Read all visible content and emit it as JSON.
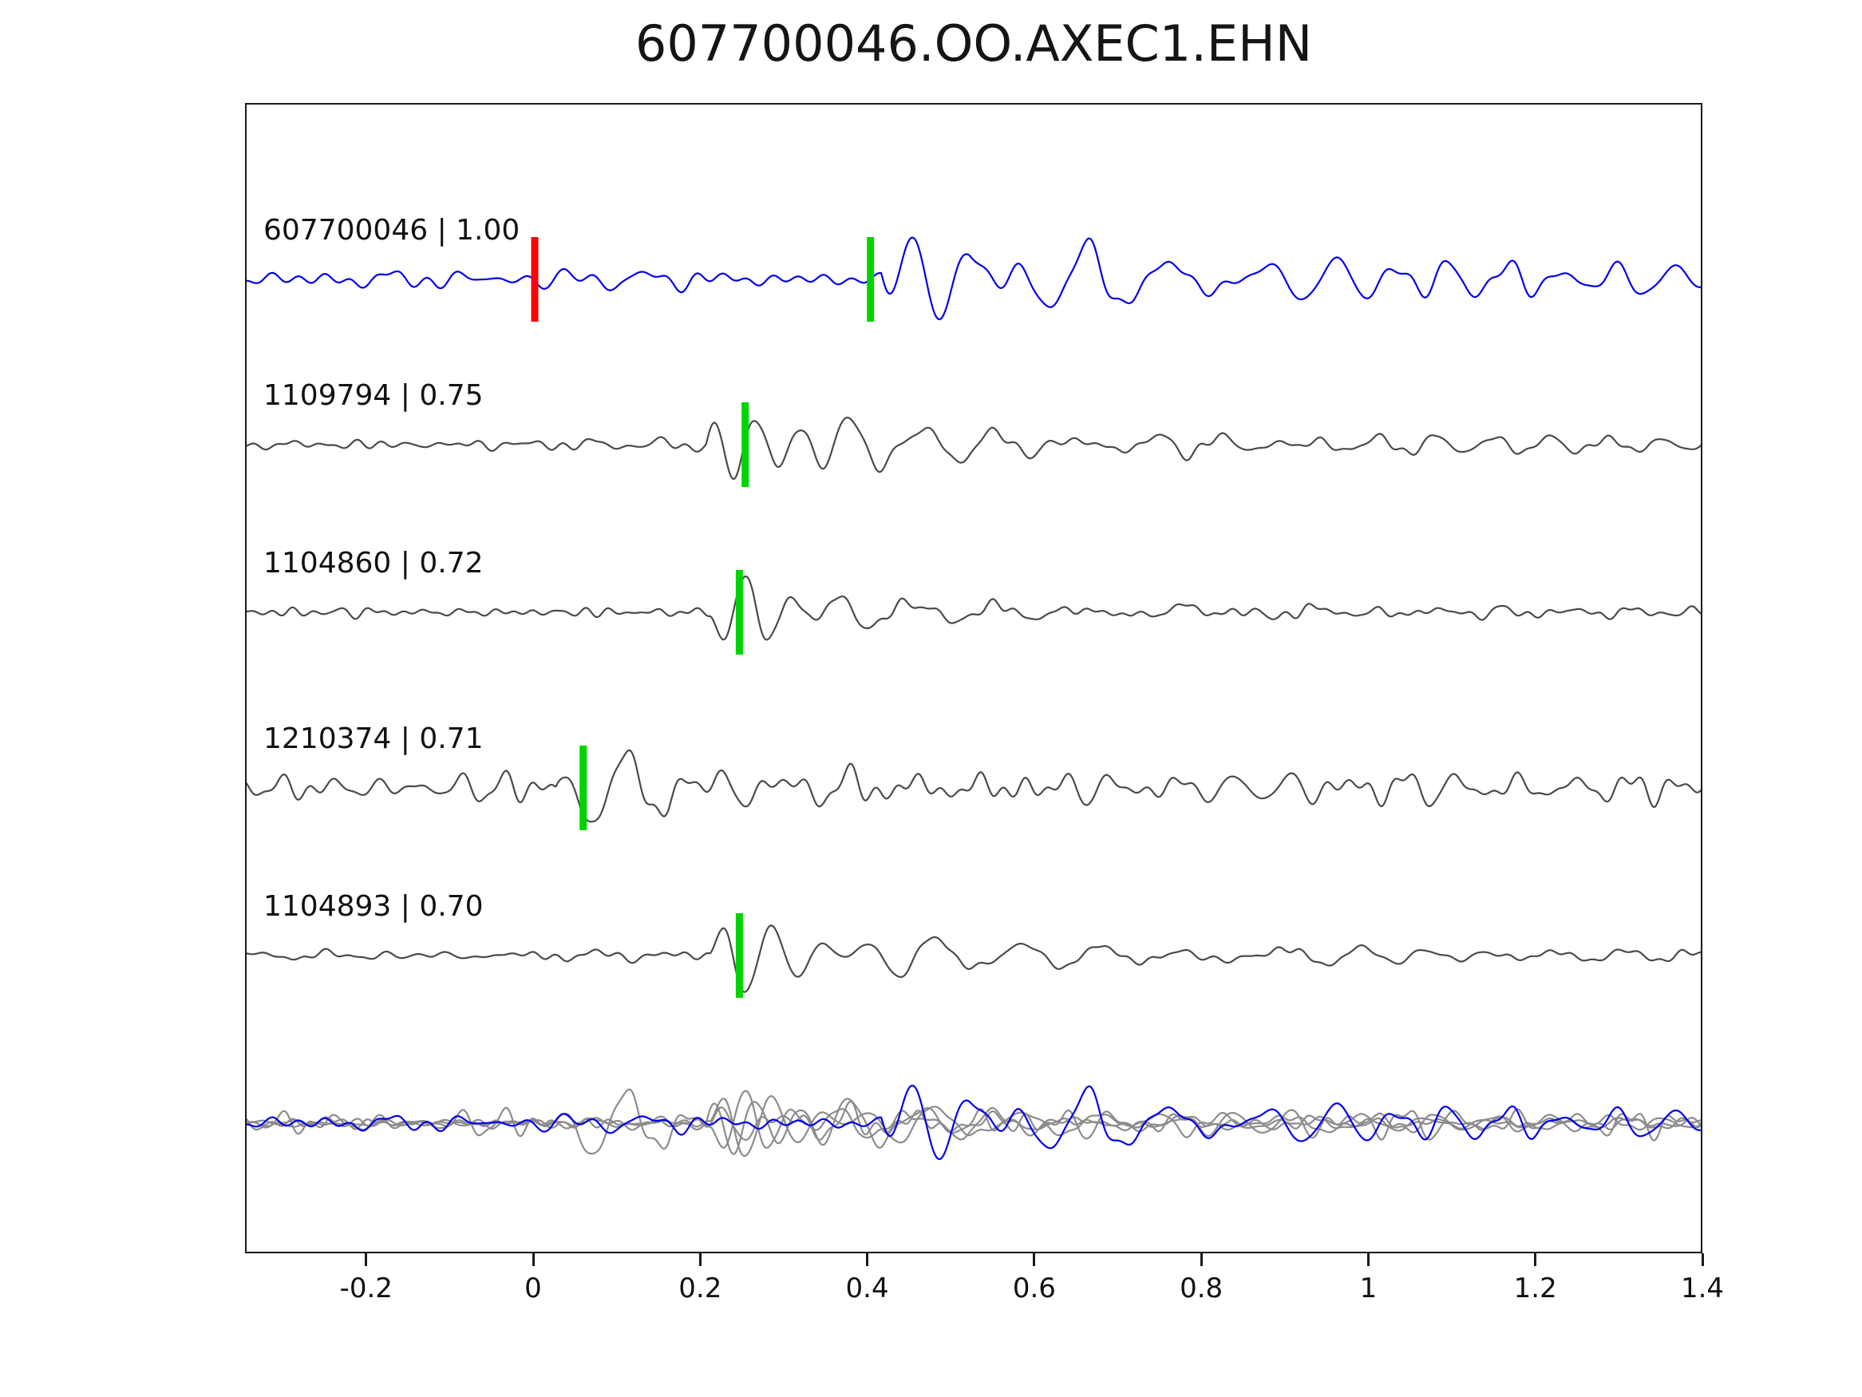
{
  "chart_data": {
    "type": "line",
    "title": "607700046.OO.AXEC1.EHN",
    "xlabel": "",
    "ylabel": "",
    "grid": false,
    "legend": "none",
    "x_range": [
      -0.345,
      1.4
    ],
    "x_ticks": [
      -0.2,
      0,
      0.2,
      0.4,
      0.6,
      0.8,
      1,
      1.2,
      1.4
    ],
    "x_tick_labels": [
      "-0.2",
      "0",
      "0.2",
      "0.4",
      "0.6",
      "0.8",
      "1",
      "1.2",
      "1.4"
    ],
    "description": "Waveform similarity plot: reference event 607700046 (blue) compared with four matched events (gray). Green bars mark pick times on each trace, red bar marks time zero on the reference trace. Bottom row overlays all five traces.",
    "colors": {
      "reference_trace": "#0000ee",
      "match_trace": "#4a4a4a",
      "pick_green": "#00d400",
      "pick_red": "#ff0000",
      "overlay_gray": "#8c8c8c",
      "axis": "#1a1a1a"
    },
    "series": [
      {
        "id": "607700046",
        "correlation": 1.0,
        "label": "607700046 | 1.00",
        "color": "#0000ee",
        "picks": [
          {
            "x": 0.0,
            "color": "#ff0000"
          },
          {
            "x": 0.402,
            "color": "#00d400"
          }
        ],
        "synth": {
          "seed": 101,
          "noise_amp": 13,
          "bursts": [
            {
              "t0": 0.415,
              "amp": 86,
              "freq": 14,
              "decay": 0.13,
              "rise": 0.02
            },
            {
              "t0": 0.52,
              "amp": 50,
              "freq": 9.5,
              "decay": 0.3,
              "rise": 0.05
            },
            {
              "t0": 0.72,
              "amp": 20,
              "freq": 15,
              "decay": 2.0,
              "rise": 0.15
            }
          ]
        }
      },
      {
        "id": "1109794",
        "correlation": 0.75,
        "label": "1109794 | 0.75",
        "color": "#4a4a4a",
        "picks": [
          {
            "x": 0.252,
            "color": "#00d400"
          }
        ],
        "synth": {
          "seed": 202,
          "noise_amp": 8,
          "bursts": [
            {
              "t0": 0.205,
              "amp": 74,
              "freq": 18,
              "decay": 0.1,
              "rise": 0.02
            },
            {
              "t0": 0.31,
              "amp": 34,
              "freq": 11,
              "decay": 0.28,
              "rise": 0.05
            },
            {
              "t0": 0.55,
              "amp": 11,
              "freq": 15,
              "decay": 2.0,
              "rise": 0.2
            }
          ]
        }
      },
      {
        "id": "1104860",
        "correlation": 0.72,
        "label": "1104860 | 0.72",
        "color": "#4a4a4a",
        "picks": [
          {
            "x": 0.245,
            "color": "#00d400"
          }
        ],
        "synth": {
          "seed": 303,
          "noise_amp": 6,
          "bursts": [
            {
              "t0": 0.21,
              "amp": 82,
              "freq": 17,
              "decay": 0.08,
              "rise": 0.02
            },
            {
              "t0": 0.3,
              "amp": 26,
              "freq": 10,
              "decay": 0.22,
              "rise": 0.05
            },
            {
              "t0": 0.72,
              "amp": 13,
              "freq": 7,
              "decay": 0.12,
              "rise": 0.04
            },
            {
              "t0": 0.45,
              "amp": 6,
              "freq": 13,
              "decay": 2.0,
              "rise": 0.3
            }
          ]
        }
      },
      {
        "id": "1210374",
        "correlation": 0.71,
        "label": "1210374 | 0.71",
        "color": "#4a4a4a",
        "picks": [
          {
            "x": 0.058,
            "color": "#00d400"
          }
        ],
        "synth": {
          "seed": 404,
          "noise_amp": 16,
          "bursts": [
            {
              "t0": 0.025,
              "amp": 76,
              "freq": 12,
              "decay": 0.12,
              "rise": 0.02
            },
            {
              "t0": 0.16,
              "amp": 42,
              "freq": 13,
              "decay": 0.2,
              "rise": 0.05
            },
            {
              "t0": 0.4,
              "amp": 13,
              "freq": 15,
              "decay": 2.0,
              "rise": 0.2
            }
          ]
        }
      },
      {
        "id": "1104893",
        "correlation": 0.7,
        "label": "1104893 | 0.70",
        "color": "#4a4a4a",
        "picks": [
          {
            "x": 0.245,
            "color": "#00d400"
          }
        ],
        "synth": {
          "seed": 505,
          "noise_amp": 6,
          "bursts": [
            {
              "t0": 0.21,
              "amp": 84,
              "freq": 16,
              "decay": 0.09,
              "rise": 0.02
            },
            {
              "t0": 0.33,
              "amp": 28,
              "freq": 10,
              "decay": 0.3,
              "rise": 0.06
            },
            {
              "t0": 0.75,
              "amp": 10,
              "freq": 7,
              "decay": 0.12,
              "rise": 0.05
            },
            {
              "t0": 0.5,
              "amp": 7,
              "freq": 13,
              "decay": 2.0,
              "rise": 0.3
            }
          ]
        }
      }
    ],
    "overlay_row": {
      "scale": 0.9,
      "gray_color": "#8c8c8c"
    }
  }
}
